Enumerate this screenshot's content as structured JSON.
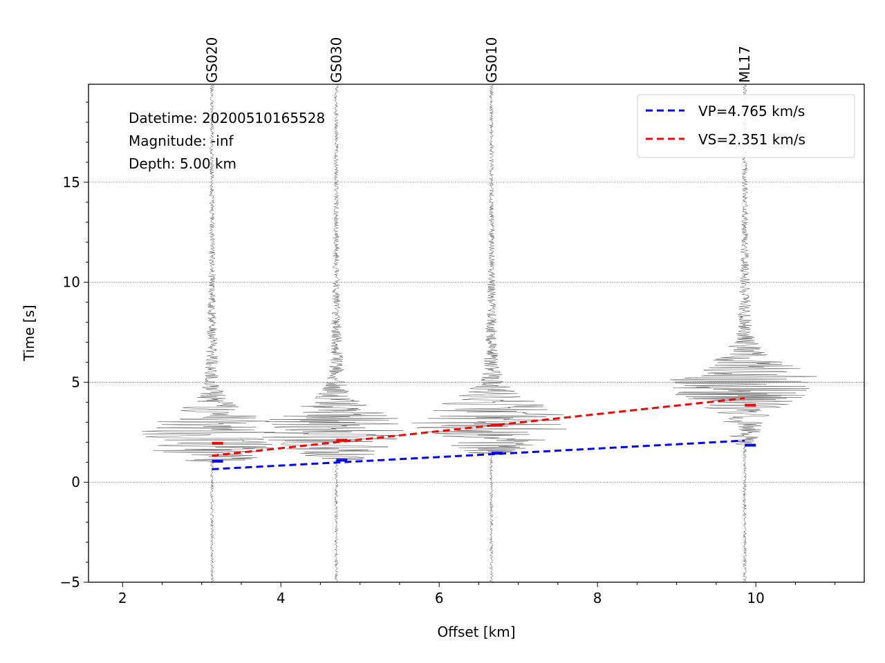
{
  "chart_data": {
    "type": "line",
    "xlabel": "Offset [km]",
    "ylabel": "Time [s]",
    "xlim": [
      1.57,
      11.37
    ],
    "ylim": [
      -5,
      19.9
    ],
    "xticks": [
      2,
      4,
      6,
      8,
      10
    ],
    "yticks": [
      -5,
      0,
      5,
      10,
      15
    ],
    "grid": "horizontal dotted",
    "annotation": {
      "datetime": "Datetime: 20200510165528",
      "magnitude": "Magnitude: -inf",
      "depth": "Depth: 5.00 km"
    },
    "legend": {
      "placement": "top-right",
      "entries": [
        {
          "label": "VP=4.765 km/s",
          "color": "#0000ff"
        },
        {
          "label": "VS=2.351 km/s",
          "color": "#ff0000"
        }
      ]
    },
    "stations": [
      {
        "name": "GS020",
        "offset": 3.13,
        "p_pick": 1.05,
        "s_pick": 1.95,
        "event_time": 2.3
      },
      {
        "name": "GS030",
        "offset": 4.7,
        "p_pick": 1.1,
        "s_pick": 2.1,
        "event_time": 2.6
      },
      {
        "name": "GS010",
        "offset": 6.66,
        "p_pick": 1.45,
        "s_pick": 2.85,
        "event_time": 3.0
      },
      {
        "name": "ML17",
        "offset": 9.86,
        "p_pick": 1.85,
        "s_pick": 3.85,
        "event_time": 4.9
      }
    ],
    "series": [
      {
        "name": "VP=4.765 km/s",
        "color": "#0000ff",
        "x": [
          3.13,
          9.86
        ],
        "y": [
          0.65,
          2.08
        ]
      },
      {
        "name": "VS=2.351 km/s",
        "color": "#ff0000",
        "x": [
          3.13,
          9.86
        ],
        "y": [
          1.33,
          4.2
        ]
      }
    ]
  }
}
